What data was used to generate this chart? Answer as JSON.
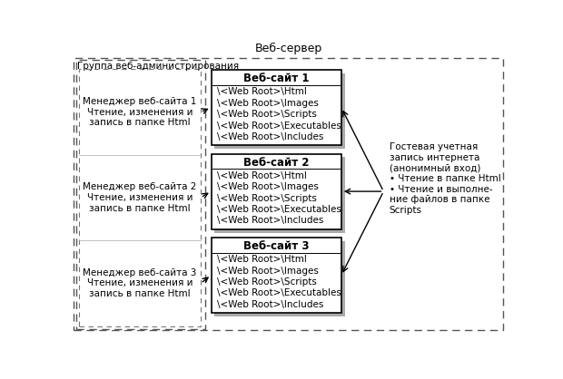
{
  "title": "Веб-сервер",
  "bg_color": "#ffffff",
  "group_admin_label": "Группа веб-администрирования",
  "managers": [
    "Менеджер веб-сайта 1\nЧтение, изменения и\nзапись в папке Html",
    "Менеджер веб-сайта 2\nЧтение, изменения и\nзапись в папке Html",
    "Менеджер веб-сайта 3\nЧтение, изменения и\nзапись в папке Html"
  ],
  "websites": [
    "Веб-сайт 1",
    "Веб-сайт 2",
    "Веб-сайт 3"
  ],
  "website_contents": [
    "\\<Web Root>\\Html\n\\<Web Root>\\Images\n\\<Web Root>\\Scripts\n\\<Web Root>\\Executables\n\\<Web Root>\\Includes",
    "\\<Web Root>\\Html\n\\<Web Root>\\Images\n\\<Web Root>\\Scripts\n\\<Web Root>\\Executables\n\\<Web Root>\\Includes",
    "\\<Web Root>\\Html\n\\<Web Root>\\Images\n\\<Web Root>\\Scripts\n\\<Web Root>\\Executables\n\\<Web Root>\\Includes"
  ],
  "guest_label": "Гостевая учетная\nзапись интернета\n(анонимный вход)\n• Чтение в папке Html\n• Чтение и выполне-\nние файлов в папке\nScripts",
  "fs": 7.5,
  "fs_site_title": 8.5,
  "fs_main_title": 9.0,
  "fs_group": 7.5
}
